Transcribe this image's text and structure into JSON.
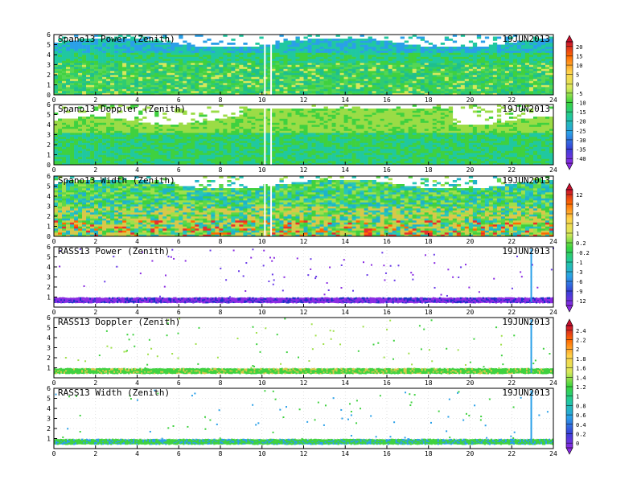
{
  "chart_data": [
    {
      "type": "heatmap",
      "title": "Spano13 Power (Zenith)",
      "date": "19JUN2013",
      "xlim": [
        0,
        24
      ],
      "ylim": [
        0,
        6
      ],
      "xticks": [
        "0",
        "2",
        "4",
        "6",
        "8",
        "10",
        "12",
        "14",
        "16",
        "18",
        "20",
        "22",
        "24"
      ],
      "yticks": [
        "0",
        "1",
        "2",
        "3",
        "4",
        "5",
        "6"
      ],
      "colorbar": {
        "labels": [
          "20",
          "15",
          "10",
          "5",
          "0",
          "-5",
          "-10",
          "-15",
          "-20",
          "-25",
          "-30",
          "-35",
          "-40"
        ]
      }
    },
    {
      "type": "heatmap",
      "title": "Spano13 Doppler (Zenith)",
      "date": "19JUN2013",
      "xlim": [
        0,
        24
      ],
      "ylim": [
        0,
        6
      ],
      "xticks": [
        "0",
        "2",
        "4",
        "6",
        "8",
        "10",
        "12",
        "14",
        "16",
        "18",
        "20",
        "22",
        "24"
      ],
      "yticks": [
        "0",
        "1",
        "2",
        "3",
        "4",
        "5",
        "6"
      ]
    },
    {
      "type": "heatmap",
      "title": "Spano13 Width (Zenith)",
      "date": "19JUN2013",
      "xlim": [
        0,
        24
      ],
      "ylim": [
        0,
        6
      ],
      "xticks": [
        "0",
        "2",
        "4",
        "6",
        "8",
        "10",
        "12",
        "14",
        "16",
        "18",
        "20",
        "22",
        "24"
      ],
      "yticks": [
        "0",
        "1",
        "2",
        "3",
        "4",
        "5",
        "6"
      ],
      "colorbar": {
        "labels": [
          "12",
          "9",
          "6",
          "3",
          "1",
          "0.2",
          "-0.2",
          "-1",
          "-3",
          "-6",
          "-9",
          "-12"
        ]
      }
    },
    {
      "type": "heatmap",
      "title": "RASS13 Power (Zenith)",
      "date": "19JUN2013",
      "xlim": [
        0,
        24
      ],
      "ylim": [
        0,
        6
      ],
      "xticks": [
        "0",
        "2",
        "4",
        "6",
        "8",
        "10",
        "12",
        "14",
        "16",
        "18",
        "20",
        "22",
        "24"
      ],
      "yticks": [
        "1",
        "2",
        "3",
        "4",
        "5",
        "6"
      ]
    },
    {
      "type": "heatmap",
      "title": "RASS13 Doppler (Zenith)",
      "date": "19JUN2013",
      "xlim": [
        0,
        24
      ],
      "ylim": [
        0,
        6
      ],
      "xticks": [
        "0",
        "2",
        "4",
        "6",
        "8",
        "10",
        "12",
        "14",
        "16",
        "18",
        "20",
        "22",
        "24"
      ],
      "yticks": [
        "1",
        "2",
        "3",
        "4",
        "5",
        "6"
      ],
      "colorbar": {
        "labels": [
          "2.4",
          "2.2",
          "2",
          "1.8",
          "1.6",
          "1.4",
          "1.2",
          "1",
          "0.8",
          "0.6",
          "0.4",
          "0.2",
          "0"
        ]
      }
    },
    {
      "type": "heatmap",
      "title": "RASS13 Width (Zenith)",
      "date": "19JUN2013",
      "xlim": [
        0,
        24
      ],
      "ylim": [
        0,
        6
      ],
      "xticks": [
        "0",
        "2",
        "4",
        "6",
        "8",
        "10",
        "12",
        "14",
        "16",
        "18",
        "20",
        "22",
        "24"
      ],
      "yticks": [
        "1",
        "2",
        "3",
        "4",
        "5",
        "6"
      ]
    }
  ]
}
